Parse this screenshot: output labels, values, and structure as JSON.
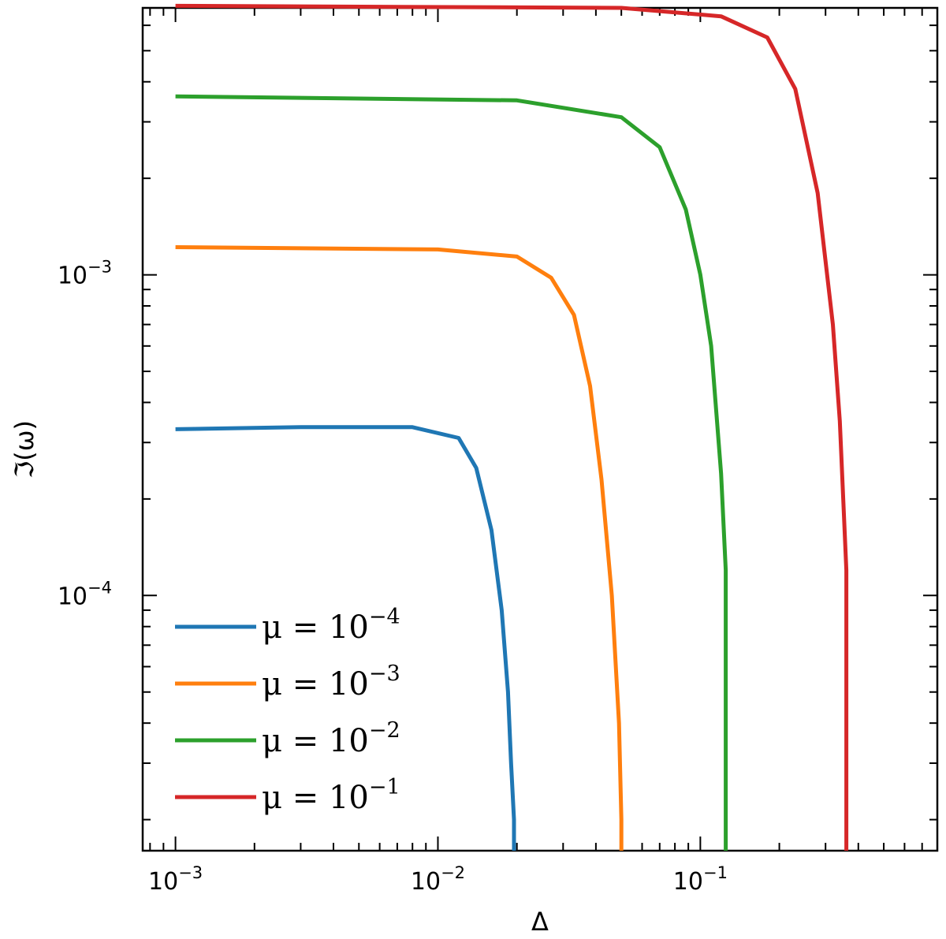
{
  "chart_data": {
    "type": "line",
    "title": "",
    "xlabel": "Δ",
    "ylabel": "ℑ(ω)",
    "xscale": "log",
    "yscale": "log",
    "xlim": [
      0.00075,
      0.8
    ],
    "ylim": [
      1.6e-05,
      0.0068
    ],
    "x_ticks": [
      {
        "value": 0.001,
        "base": "10",
        "exp": "−3"
      },
      {
        "value": 0.01,
        "base": "10",
        "exp": "−2"
      },
      {
        "value": 0.1,
        "base": "10",
        "exp": "−1"
      }
    ],
    "y_ticks": [
      {
        "value": 0.001,
        "base": "10",
        "exp": "−3"
      },
      {
        "value": 0.0001,
        "base": "10",
        "exp": "−4"
      }
    ],
    "grid": false,
    "legend_position": "bottom-left",
    "series": [
      {
        "name": "μ = 10^-4",
        "label_main": "μ = 10",
        "label_exp": "−4",
        "color": "#1f77b4",
        "x": [
          0.001,
          0.003,
          0.008,
          0.012,
          0.014,
          0.016,
          0.0175,
          0.0185,
          0.019,
          0.0195,
          0.0195
        ],
        "y": [
          0.00033,
          0.000335,
          0.000335,
          0.00031,
          0.00025,
          0.00016,
          9e-05,
          5e-05,
          3e-05,
          2e-05,
          1.6e-05
        ]
      },
      {
        "name": "μ = 10^-3",
        "label_main": "μ = 10",
        "label_exp": "−3",
        "color": "#ff7f0e",
        "x": [
          0.001,
          0.01,
          0.02,
          0.027,
          0.033,
          0.038,
          0.042,
          0.046,
          0.049,
          0.05,
          0.05
        ],
        "y": [
          0.00122,
          0.0012,
          0.00114,
          0.00098,
          0.00075,
          0.00045,
          0.00023,
          0.0001,
          4e-05,
          2e-05,
          1.6e-05
        ]
      },
      {
        "name": "μ = 10^-2",
        "label_main": "μ = 10",
        "label_exp": "−2",
        "color": "#2ca02c",
        "x": [
          0.001,
          0.02,
          0.05,
          0.07,
          0.088,
          0.1,
          0.11,
          0.12,
          0.125,
          0.125
        ],
        "y": [
          0.0036,
          0.0035,
          0.0031,
          0.0025,
          0.0016,
          0.001,
          0.0006,
          0.00024,
          0.00012,
          1.6e-05
        ]
      },
      {
        "name": "μ = 10^-1",
        "label_main": "μ = 10",
        "label_exp": "−1",
        "color": "#d62728",
        "x": [
          0.001,
          0.05,
          0.12,
          0.18,
          0.23,
          0.28,
          0.32,
          0.34,
          0.36,
          0.36
        ],
        "y": [
          0.0069,
          0.0068,
          0.0064,
          0.0055,
          0.0038,
          0.0018,
          0.0007,
          0.00035,
          0.00012,
          1.6e-05
        ]
      }
    ]
  }
}
